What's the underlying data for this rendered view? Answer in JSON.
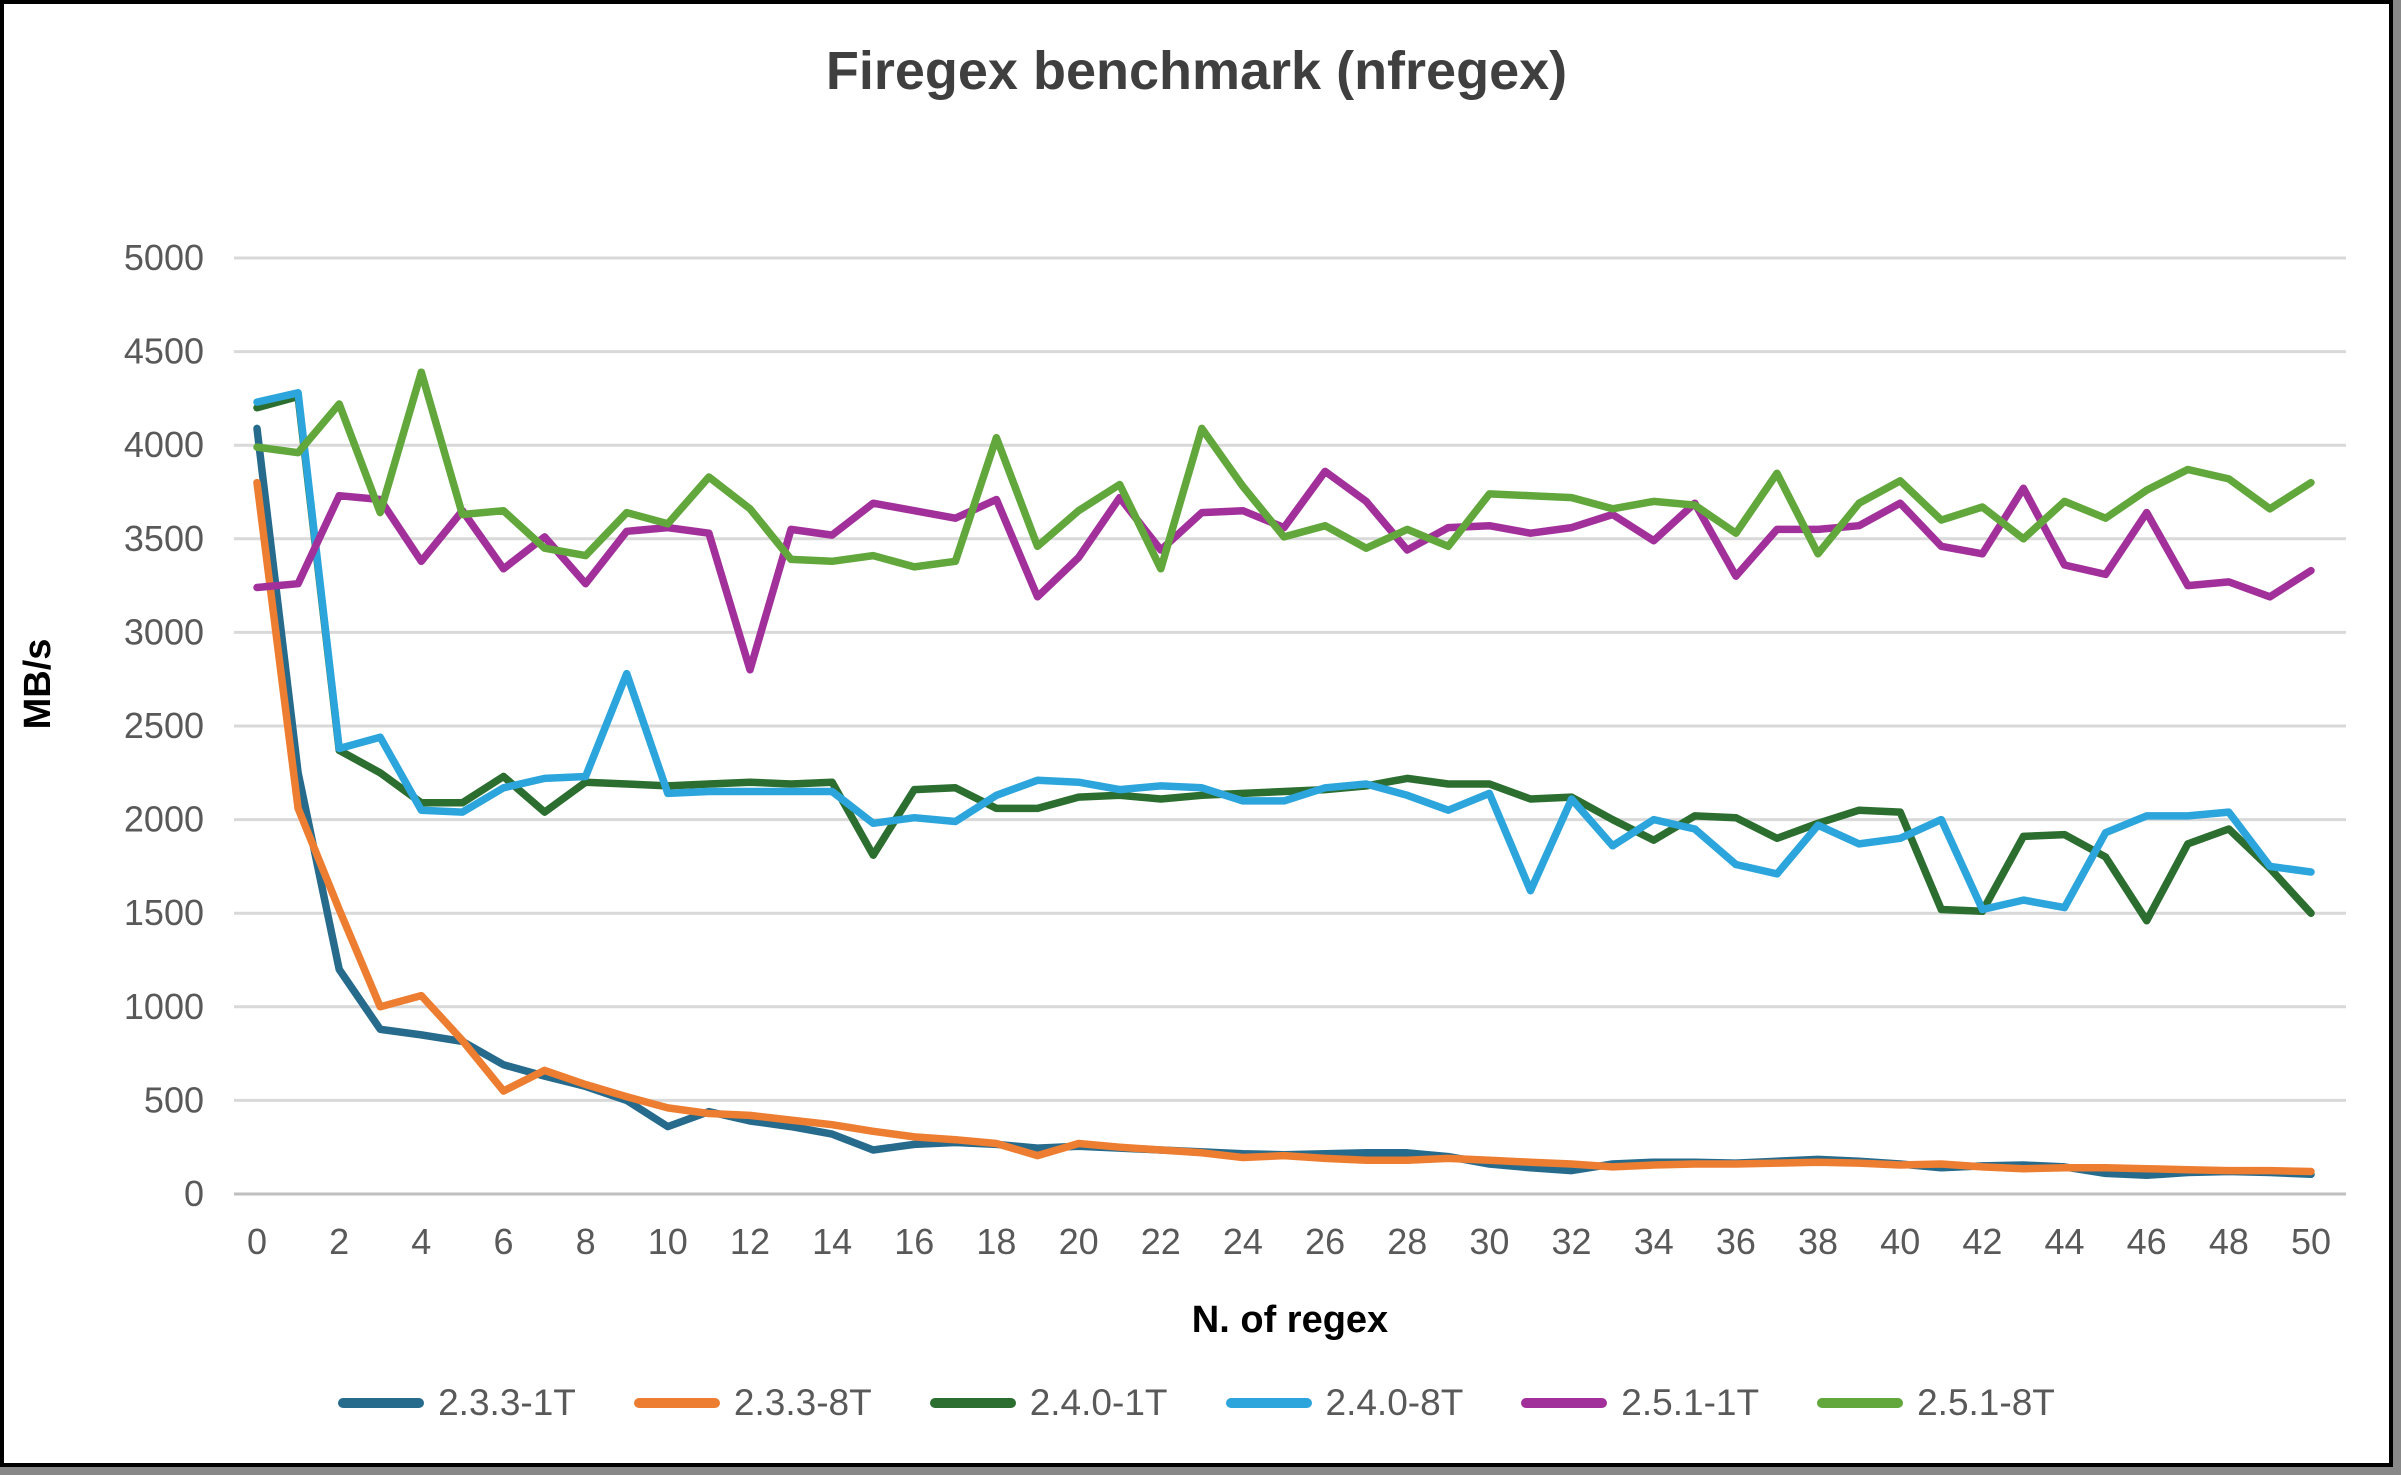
{
  "chart_data": {
    "type": "line",
    "title": "Firegex benchmark (nfregex)",
    "xlabel": "N. of regex",
    "ylabel": "MB/s",
    "xlim": [
      0,
      50
    ],
    "ylim": [
      0,
      5000
    ],
    "x_ticks": [
      0,
      2,
      4,
      6,
      8,
      10,
      12,
      14,
      16,
      18,
      20,
      22,
      24,
      26,
      28,
      30,
      32,
      34,
      36,
      38,
      40,
      42,
      44,
      46,
      48,
      50
    ],
    "y_ticks": [
      0,
      500,
      1000,
      1500,
      2000,
      2500,
      3000,
      3500,
      4000,
      4500,
      5000
    ],
    "grid": true,
    "legend_position": "bottom",
    "grid_color": "#d9d9d9",
    "axis_line_color": "#bfbfbf",
    "tick_label_color": "#595959",
    "x": [
      0,
      1,
      2,
      3,
      4,
      5,
      6,
      7,
      8,
      9,
      10,
      11,
      12,
      13,
      14,
      15,
      16,
      17,
      18,
      19,
      20,
      21,
      22,
      23,
      24,
      25,
      26,
      27,
      28,
      29,
      30,
      31,
      32,
      33,
      34,
      35,
      36,
      37,
      38,
      39,
      40,
      41,
      42,
      43,
      44,
      45,
      46,
      47,
      48,
      49,
      50
    ],
    "series": [
      {
        "name": "2.3.3-1T",
        "color": "#266a8c",
        "values": [
          4090,
          2250,
          1200,
          880,
          850,
          815,
          690,
          630,
          575,
          500,
          360,
          440,
          390,
          360,
          320,
          235,
          265,
          275,
          265,
          245,
          255,
          245,
          235,
          225,
          215,
          210,
          215,
          220,
          220,
          200,
          160,
          140,
          125,
          160,
          170,
          170,
          165,
          175,
          185,
          175,
          160,
          140,
          150,
          155,
          145,
          110,
          100,
          115,
          120,
          115,
          105
        ]
      },
      {
        "name": "2.3.3-8T",
        "color": "#ed7d31",
        "values": [
          3800,
          2060,
          1520,
          1000,
          1060,
          820,
          550,
          660,
          585,
          520,
          460,
          430,
          420,
          395,
          370,
          335,
          305,
          290,
          270,
          205,
          270,
          250,
          235,
          220,
          195,
          205,
          190,
          180,
          180,
          190,
          180,
          170,
          160,
          145,
          155,
          160,
          160,
          165,
          170,
          165,
          155,
          160,
          145,
          135,
          140,
          140,
          135,
          130,
          125,
          125,
          120
        ]
      },
      {
        "name": "2.4.0-1T",
        "color": "#2b6e2f",
        "values": [
          4200,
          4260,
          2370,
          2250,
          2090,
          2090,
          2230,
          2040,
          2200,
          2190,
          2180,
          2190,
          2200,
          2190,
          2200,
          1810,
          2160,
          2170,
          2060,
          2060,
          2120,
          2130,
          2110,
          2130,
          2140,
          2150,
          2160,
          2180,
          2220,
          2190,
          2190,
          2110,
          2120,
          2000,
          1890,
          2020,
          2010,
          1900,
          1980,
          2050,
          2040,
          1520,
          1510,
          1910,
          1920,
          1800,
          1460,
          1870,
          1950,
          1740,
          1500
        ]
      },
      {
        "name": "2.4.0-8T",
        "color": "#2ca5dc",
        "values": [
          4230,
          4280,
          2380,
          2440,
          2050,
          2040,
          2170,
          2220,
          2230,
          2780,
          2140,
          2150,
          2150,
          2150,
          2150,
          1980,
          2010,
          1990,
          2130,
          2210,
          2200,
          2160,
          2180,
          2170,
          2100,
          2100,
          2170,
          2190,
          2130,
          2050,
          2140,
          1620,
          2110,
          1860,
          2000,
          1950,
          1760,
          1710,
          1970,
          1870,
          1900,
          2000,
          1520,
          1570,
          1530,
          1930,
          2020,
          2020,
          2040,
          1750,
          1720
        ]
      },
      {
        "name": "2.5.1-1T",
        "color": "#a2309b",
        "values": [
          3240,
          3260,
          3730,
          3710,
          3380,
          3650,
          3340,
          3510,
          3260,
          3540,
          3560,
          3530,
          2800,
          3550,
          3520,
          3690,
          3650,
          3610,
          3710,
          3190,
          3400,
          3720,
          3440,
          3640,
          3650,
          3560,
          3860,
          3700,
          3440,
          3560,
          3570,
          3530,
          3560,
          3630,
          3490,
          3690,
          3300,
          3550,
          3550,
          3570,
          3690,
          3460,
          3420,
          3770,
          3360,
          3310,
          3640,
          3250,
          3270,
          3190,
          3330
        ]
      },
      {
        "name": "2.5.1-8T",
        "color": "#61a73b",
        "values": [
          3990,
          3960,
          4220,
          3640,
          4390,
          3630,
          3650,
          3450,
          3410,
          3640,
          3580,
          3830,
          3660,
          3390,
          3380,
          3410,
          3350,
          3380,
          4040,
          3460,
          3650,
          3790,
          3340,
          4090,
          3780,
          3510,
          3570,
          3450,
          3550,
          3460,
          3740,
          3730,
          3720,
          3660,
          3700,
          3680,
          3530,
          3850,
          3420,
          3690,
          3810,
          3600,
          3670,
          3500,
          3700,
          3610,
          3760,
          3870,
          3820,
          3660,
          3800
        ]
      }
    ]
  }
}
